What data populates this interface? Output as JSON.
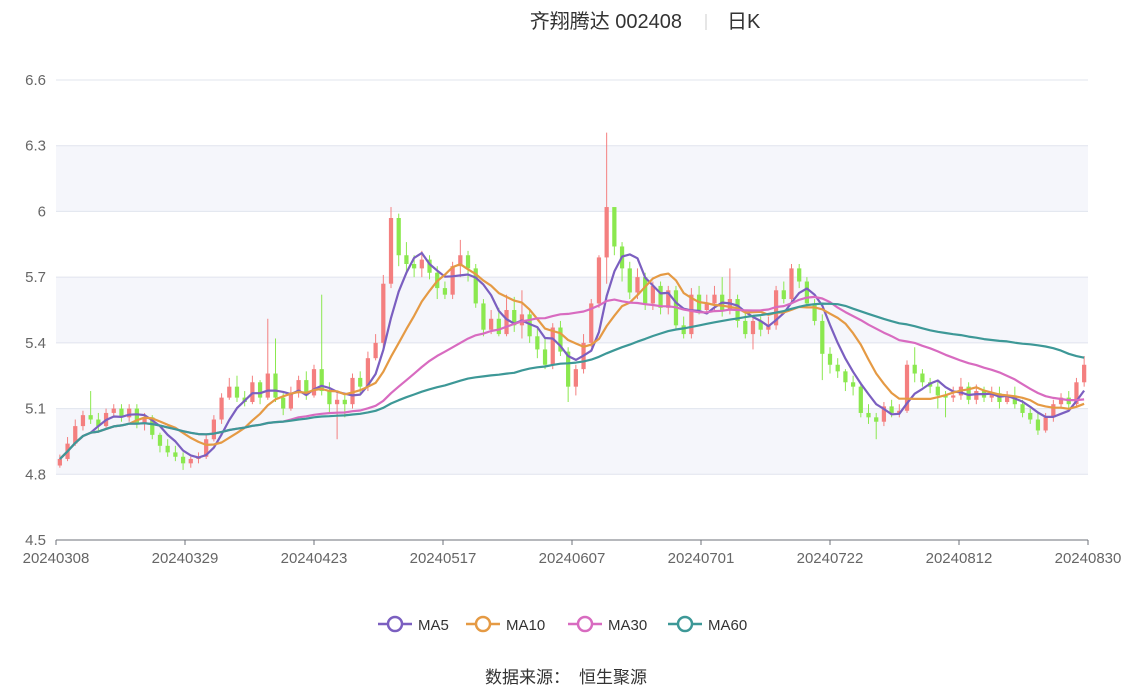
{
  "title": {
    "name": "齐翔腾达 002408",
    "period": "日K"
  },
  "source_label": "数据来源：",
  "source_name": "恒生聚源",
  "colors": {
    "up": "#f47f7f",
    "down": "#8be84f",
    "MA5": "#7b5fc0",
    "MA10": "#e59a44",
    "MA30": "#d86bc0",
    "MA60": "#3d9897"
  },
  "chart_data": {
    "type": "candlestick",
    "y_ticks": [
      "6.6",
      "6.3",
      "6",
      "5.7",
      "5.4",
      "5.1",
      "4.8",
      "4.5"
    ],
    "x_ticks": [
      "20240308",
      "20240329",
      "20240423",
      "20240517",
      "20240607",
      "20240701",
      "20240722",
      "20240812",
      "20240830"
    ],
    "ylim": [
      4.5,
      6.6
    ],
    "legend": [
      "MA5",
      "MA10",
      "MA30",
      "MA60"
    ],
    "legend_position": "bottom",
    "candles": [
      [
        4.84,
        4.87,
        4.83,
        4.89
      ],
      [
        4.87,
        4.94,
        4.86,
        4.97
      ],
      [
        4.94,
        5.02,
        4.93,
        5.05
      ],
      [
        5.02,
        5.07,
        5.0,
        5.09
      ],
      [
        5.07,
        5.05,
        5.03,
        5.18
      ],
      [
        5.05,
        5.02,
        5.0,
        5.08
      ],
      [
        5.02,
        5.08,
        5.01,
        5.1
      ],
      [
        5.08,
        5.1,
        5.06,
        5.12
      ],
      [
        5.1,
        5.06,
        5.04,
        5.12
      ],
      [
        5.06,
        5.1,
        5.04,
        5.12
      ],
      [
        5.1,
        5.03,
        5.01,
        5.12
      ],
      [
        5.03,
        5.06,
        5.0,
        5.08
      ],
      [
        5.06,
        4.98,
        4.96,
        5.07
      ],
      [
        4.98,
        4.93,
        4.9,
        4.99
      ],
      [
        4.93,
        4.9,
        4.88,
        4.96
      ],
      [
        4.9,
        4.88,
        4.86,
        4.93
      ],
      [
        4.88,
        4.85,
        4.82,
        4.9
      ],
      [
        4.85,
        4.87,
        4.83,
        4.88
      ],
      [
        4.87,
        4.88,
        4.85,
        4.9
      ],
      [
        4.88,
        4.96,
        4.87,
        4.98
      ],
      [
        4.96,
        5.05,
        4.95,
        5.07
      ],
      [
        5.05,
        5.15,
        5.03,
        5.17
      ],
      [
        5.15,
        5.2,
        5.14,
        5.24
      ],
      [
        5.2,
        5.15,
        5.13,
        5.25
      ],
      [
        5.15,
        5.13,
        5.11,
        5.18
      ],
      [
        5.13,
        5.22,
        5.12,
        5.25
      ],
      [
        5.22,
        5.15,
        5.12,
        5.23
      ],
      [
        5.15,
        5.26,
        5.14,
        5.51
      ],
      [
        5.26,
        5.15,
        5.13,
        5.42
      ],
      [
        5.15,
        5.1,
        5.07,
        5.17
      ],
      [
        5.1,
        5.17,
        5.09,
        5.2
      ],
      [
        5.17,
        5.23,
        5.15,
        5.25
      ],
      [
        5.23,
        5.16,
        5.14,
        5.27
      ],
      [
        5.16,
        5.28,
        5.15,
        5.3
      ],
      [
        5.28,
        5.18,
        5.16,
        5.62
      ],
      [
        5.18,
        5.12,
        5.08,
        5.22
      ],
      [
        5.12,
        5.14,
        4.96,
        5.17
      ],
      [
        5.14,
        5.12,
        5.06,
        5.16
      ],
      [
        5.12,
        5.24,
        5.1,
        5.26
      ],
      [
        5.24,
        5.2,
        5.17,
        5.27
      ],
      [
        5.2,
        5.33,
        5.18,
        5.36
      ],
      [
        5.33,
        5.4,
        5.32,
        5.44
      ],
      [
        5.4,
        5.67,
        5.38,
        5.71
      ],
      [
        5.67,
        5.97,
        5.65,
        6.02
      ],
      [
        5.97,
        5.8,
        5.75,
        5.99
      ],
      [
        5.8,
        5.76,
        5.72,
        5.86
      ],
      [
        5.76,
        5.74,
        5.7,
        5.8
      ],
      [
        5.74,
        5.78,
        5.7,
        5.82
      ],
      [
        5.78,
        5.72,
        5.69,
        5.8
      ],
      [
        5.72,
        5.65,
        5.6,
        5.75
      ],
      [
        5.65,
        5.62,
        5.6,
        5.68
      ],
      [
        5.62,
        5.75,
        5.6,
        5.77
      ],
      [
        5.75,
        5.8,
        5.7,
        5.87
      ],
      [
        5.8,
        5.74,
        5.68,
        5.82
      ],
      [
        5.74,
        5.58,
        5.56,
        5.76
      ],
      [
        5.58,
        5.46,
        5.43,
        5.6
      ],
      [
        5.46,
        5.51,
        5.44,
        5.55
      ],
      [
        5.51,
        5.44,
        5.43,
        5.56
      ],
      [
        5.44,
        5.55,
        5.43,
        5.62
      ],
      [
        5.55,
        5.48,
        5.45,
        5.61
      ],
      [
        5.48,
        5.53,
        5.42,
        5.64
      ],
      [
        5.53,
        5.43,
        5.4,
        5.55
      ],
      [
        5.43,
        5.37,
        5.33,
        5.47
      ],
      [
        5.37,
        5.3,
        5.28,
        5.42
      ],
      [
        5.3,
        5.47,
        5.28,
        5.49
      ],
      [
        5.47,
        5.36,
        5.34,
        5.5
      ],
      [
        5.36,
        5.2,
        5.13,
        5.38
      ],
      [
        5.2,
        5.28,
        5.16,
        5.3
      ],
      [
        5.28,
        5.4,
        5.26,
        5.44
      ],
      [
        5.4,
        5.58,
        5.38,
        5.6
      ],
      [
        5.58,
        5.79,
        5.56,
        5.8
      ],
      [
        5.79,
        6.02,
        5.67,
        6.36
      ],
      [
        6.02,
        5.84,
        5.8,
        6.0
      ],
      [
        5.84,
        5.74,
        5.68,
        5.86
      ],
      [
        5.74,
        5.63,
        5.6,
        5.77
      ],
      [
        5.63,
        5.7,
        5.6,
        5.74
      ],
      [
        5.7,
        5.58,
        5.55,
        5.72
      ],
      [
        5.58,
        5.66,
        5.55,
        5.68
      ],
      [
        5.66,
        5.56,
        5.53,
        5.68
      ],
      [
        5.56,
        5.64,
        5.53,
        5.66
      ],
      [
        5.64,
        5.48,
        5.46,
        5.66
      ],
      [
        5.48,
        5.44,
        5.42,
        5.52
      ],
      [
        5.44,
        5.62,
        5.42,
        5.65
      ],
      [
        5.62,
        5.55,
        5.53,
        5.66
      ],
      [
        5.55,
        5.58,
        5.53,
        5.62
      ],
      [
        5.58,
        5.62,
        5.55,
        5.66
      ],
      [
        5.62,
        5.55,
        5.52,
        5.7
      ],
      [
        5.55,
        5.6,
        5.53,
        5.74
      ],
      [
        5.6,
        5.5,
        5.47,
        5.62
      ],
      [
        5.5,
        5.44,
        5.42,
        5.55
      ],
      [
        5.44,
        5.5,
        5.37,
        5.52
      ],
      [
        5.5,
        5.46,
        5.43,
        5.52
      ],
      [
        5.46,
        5.48,
        5.44,
        5.52
      ],
      [
        5.48,
        5.64,
        5.46,
        5.66
      ],
      [
        5.64,
        5.6,
        5.58,
        5.68
      ],
      [
        5.6,
        5.74,
        5.58,
        5.76
      ],
      [
        5.74,
        5.68,
        5.65,
        5.76
      ],
      [
        5.68,
        5.58,
        5.56,
        5.7
      ],
      [
        5.58,
        5.5,
        5.48,
        5.6
      ],
      [
        5.5,
        5.35,
        5.23,
        5.53
      ],
      [
        5.35,
        5.3,
        5.26,
        5.38
      ],
      [
        5.3,
        5.27,
        5.24,
        5.33
      ],
      [
        5.27,
        5.22,
        5.18,
        5.28
      ],
      [
        5.22,
        5.2,
        5.16,
        5.25
      ],
      [
        5.2,
        5.08,
        5.06,
        5.22
      ],
      [
        5.08,
        5.06,
        5.03,
        5.12
      ],
      [
        5.06,
        5.04,
        4.96,
        5.08
      ],
      [
        5.04,
        5.11,
        5.02,
        5.13
      ],
      [
        5.11,
        5.08,
        5.06,
        5.14
      ],
      [
        5.08,
        5.09,
        5.06,
        5.12
      ],
      [
        5.09,
        5.3,
        5.08,
        5.32
      ],
      [
        5.3,
        5.26,
        5.22,
        5.38
      ],
      [
        5.26,
        5.22,
        5.2,
        5.28
      ],
      [
        5.22,
        5.2,
        5.17,
        5.24
      ],
      [
        5.2,
        5.16,
        5.1,
        5.23
      ],
      [
        5.16,
        5.15,
        5.06,
        5.18
      ],
      [
        5.15,
        5.16,
        5.13,
        5.2
      ],
      [
        5.16,
        5.2,
        5.14,
        5.24
      ],
      [
        5.2,
        5.14,
        5.12,
        5.22
      ],
      [
        5.14,
        5.18,
        5.12,
        5.21
      ],
      [
        5.18,
        5.15,
        5.13,
        5.2
      ],
      [
        5.15,
        5.17,
        5.13,
        5.2
      ],
      [
        5.17,
        5.13,
        5.1,
        5.2
      ],
      [
        5.13,
        5.16,
        5.12,
        5.18
      ],
      [
        5.16,
        5.12,
        5.1,
        5.2
      ],
      [
        5.12,
        5.08,
        5.06,
        5.14
      ],
      [
        5.08,
        5.05,
        5.03,
        5.1
      ],
      [
        5.05,
        5.0,
        4.98,
        5.08
      ],
      [
        5.0,
        5.06,
        4.99,
        5.08
      ],
      [
        5.06,
        5.12,
        5.04,
        5.14
      ],
      [
        5.12,
        5.15,
        5.1,
        5.17
      ],
      [
        5.15,
        5.12,
        5.1,
        5.18
      ],
      [
        5.12,
        5.22,
        5.11,
        5.24
      ],
      [
        5.22,
        5.3,
        5.2,
        5.34
      ]
    ]
  }
}
